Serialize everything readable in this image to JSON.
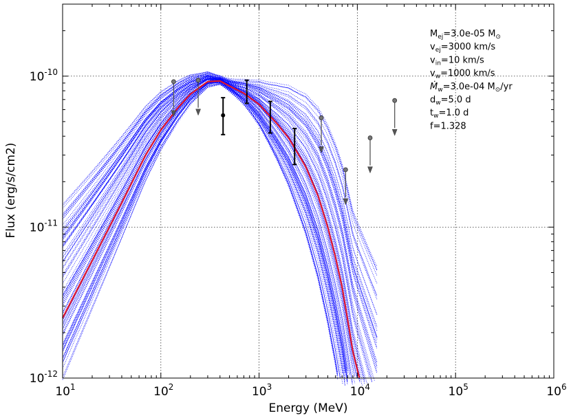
{
  "chart_data": {
    "type": "line",
    "xlabel": "Energy (MeV)",
    "ylabel": "Flux (erg/s/cm2)",
    "xscale": "log",
    "yscale": "log",
    "xlim": [
      10,
      1000000
    ],
    "ylim": [
      1e-12,
      3e-10
    ],
    "grid": true,
    "x_ticks": [
      {
        "value": 10,
        "base": "10",
        "exp": "1"
      },
      {
        "value": 100,
        "base": "10",
        "exp": "2"
      },
      {
        "value": 1000,
        "base": "10",
        "exp": "3"
      },
      {
        "value": 10000,
        "base": "10",
        "exp": "4"
      },
      {
        "value": 100000,
        "base": "10",
        "exp": "5"
      },
      {
        "value": 1000000,
        "base": "10",
        "exp": "6"
      }
    ],
    "y_ticks": [
      {
        "value": 1e-12,
        "base": "10",
        "exp": "-12"
      },
      {
        "value": 1e-11,
        "base": "10",
        "exp": "-11"
      },
      {
        "value": 1e-10,
        "base": "10",
        "exp": "-10"
      }
    ],
    "best_fit": {
      "color": "#e0162b",
      "points": [
        [
          10,
          2.5e-12
        ],
        [
          20,
          6e-12
        ],
        [
          40,
          1.45e-11
        ],
        [
          70,
          3e-11
        ],
        [
          100,
          4.4e-11
        ],
        [
          150,
          6.2e-11
        ],
        [
          200,
          7.6e-11
        ],
        [
          300,
          9.2e-11
        ],
        [
          400,
          9.3e-11
        ],
        [
          500,
          8.6e-11
        ],
        [
          700,
          7.7e-11
        ],
        [
          1000,
          6.5e-11
        ],
        [
          1500,
          4.9e-11
        ],
        [
          2000,
          3.9e-11
        ],
        [
          3000,
          2.5e-11
        ],
        [
          4000,
          1.6e-11
        ],
        [
          5000,
          1e-11
        ],
        [
          6000,
          6.3e-12
        ],
        [
          7000,
          4e-12
        ],
        [
          8000,
          2.4e-12
        ],
        [
          9000,
          1.5e-12
        ],
        [
          10500,
          1e-12
        ]
      ]
    },
    "samples": {
      "color": "#0000ff",
      "style": "dotted",
      "count": 110
    },
    "data_points": [
      {
        "x": 430,
        "y": 5.5e-11,
        "yerr_low": 4.1e-11,
        "yerr_high": 7.2e-11,
        "color": "#000000"
      },
      {
        "x": 750,
        "y": 7.9e-11,
        "yerr_low": 6.6e-11,
        "yerr_high": 9.4e-11,
        "color": "#000000",
        "marker": false
      },
      {
        "x": 1300,
        "y": 5.5e-11,
        "yerr_low": 4.2e-11,
        "yerr_high": 6.8e-11,
        "color": "#000000",
        "marker": false
      },
      {
        "x": 2300,
        "y": 3.5e-11,
        "yerr_low": 2.6e-11,
        "yerr_high": 4.5e-11,
        "color": "#000000",
        "marker": false
      }
    ],
    "upper_limits": [
      {
        "x": 135,
        "y": 9.2e-11
      },
      {
        "x": 240,
        "y": 9.4e-11
      },
      {
        "x": 4300,
        "y": 5.3e-11
      },
      {
        "x": 7600,
        "y": 2.4e-11
      },
      {
        "x": 13500,
        "y": 3.9e-11
      },
      {
        "x": 24000,
        "y": 6.9e-11
      }
    ],
    "annotations": [
      {
        "pre": "M",
        "sub": "ej",
        "post": "=3.0e-05 M",
        "sym": "⊙",
        "tail": ""
      },
      {
        "pre": "v",
        "sub": "ej",
        "post": "=3000 km/s",
        "sym": "",
        "tail": ""
      },
      {
        "pre": "v",
        "sub": "in",
        "post": "=10 km/s",
        "sym": "",
        "tail": ""
      },
      {
        "pre": "v",
        "sub": "w",
        "post": "=1000 km/s",
        "sym": "",
        "tail": ""
      },
      {
        "pre": "Ṁ",
        "sub": "w",
        "post": "=3.0e-04 M",
        "sym": "⊙",
        "tail": "/yr"
      },
      {
        "pre": "d",
        "sub": "w",
        "post": "=5.0 d",
        "sym": "",
        "tail": ""
      },
      {
        "pre": "t",
        "sub": "w",
        "post": "=1.0 d",
        "sym": "",
        "tail": ""
      },
      {
        "pre": "f=1.328",
        "sub": "",
        "post": "",
        "sym": "",
        "tail": ""
      }
    ]
  }
}
